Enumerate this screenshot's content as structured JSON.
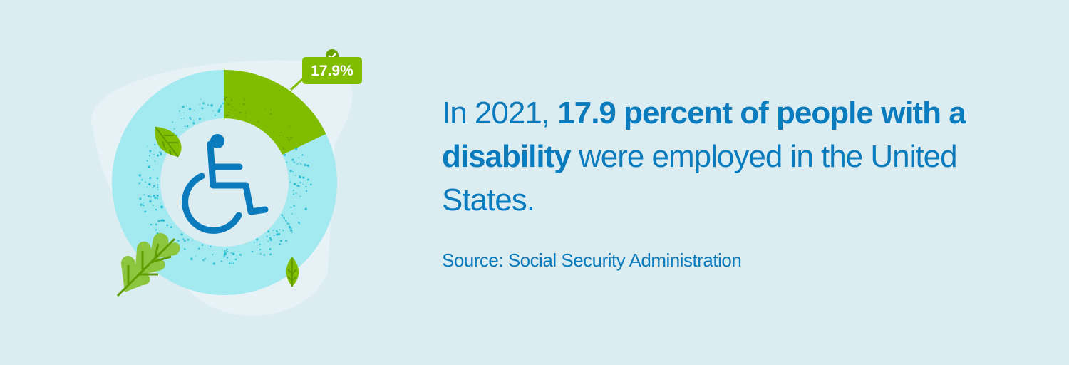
{
  "chart_data": {
    "type": "pie",
    "style": "donut",
    "values": [
      17.9,
      82.1
    ],
    "data_label": "17.9%",
    "colors": [
      "#80bc00",
      "#a3e9f0"
    ],
    "center_icon": "wheelchair-icon"
  },
  "headline": {
    "part1": "In 2021, ",
    "bold": "17.9 percent of people with a disability",
    "part2": " were employed in the United States."
  },
  "source": "Source: Social Security Administration",
  "colors": {
    "text": "#0a7bbd",
    "background": "#dcedf1",
    "accent": "#80bc00"
  }
}
